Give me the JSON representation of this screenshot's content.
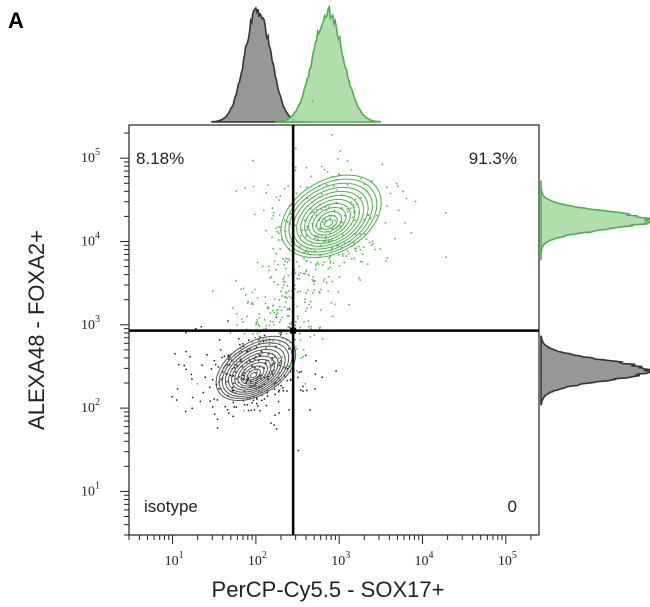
{
  "panel_label": "A",
  "chart_data": {
    "type": "scatter",
    "subtype": "flow-cytometry-contour-with-marginal-histograms",
    "xlabel": "PerCP-Cy5.5 - SOX17+",
    "ylabel": "ALEXA48 - FOXA2+",
    "x_scale": "log",
    "y_scale": "log",
    "xlim": [
      3,
      250000
    ],
    "ylim": [
      3,
      250000
    ],
    "x_ticks": [
      {
        "value": 10,
        "base": "10",
        "exp": "1"
      },
      {
        "value": 100,
        "base": "10",
        "exp": "2"
      },
      {
        "value": 1000,
        "base": "10",
        "exp": "3"
      },
      {
        "value": 10000,
        "base": "10",
        "exp": "4"
      },
      {
        "value": 100000,
        "base": "10",
        "exp": "5"
      }
    ],
    "y_ticks": [
      {
        "value": 10,
        "base": "10",
        "exp": "1"
      },
      {
        "value": 100,
        "base": "10",
        "exp": "2"
      },
      {
        "value": 1000,
        "base": "10",
        "exp": "3"
      },
      {
        "value": 10000,
        "base": "10",
        "exp": "4"
      },
      {
        "value": 100000,
        "base": "10",
        "exp": "5"
      }
    ],
    "gates": {
      "x": 280,
      "y": 850
    },
    "quadrant_labels": {
      "upper_left": "8.18%",
      "upper_right": "91.3%",
      "lower_left": "isotype",
      "lower_right": "0"
    },
    "series": [
      {
        "color": "#4daf4a",
        "fill": "#a8dca3",
        "center": [
          800,
          20000
        ]
      },
      {
        "color": "#333333",
        "fill": "#8c8c8c",
        "center": [
          100,
          300
        ]
      }
    ]
  }
}
